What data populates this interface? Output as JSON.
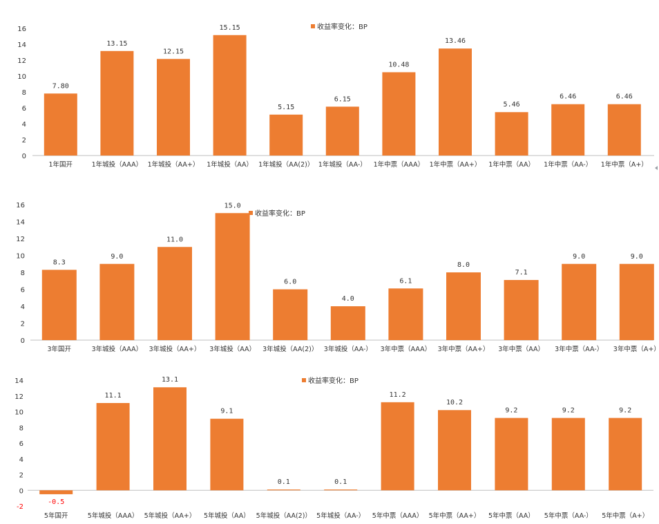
{
  "colors": {
    "bar": "#ED7D31",
    "negative_label": "#FF0000",
    "axis": "#BFBFBF",
    "text": "#333333"
  },
  "chart_data": [
    {
      "type": "bar",
      "legend": "收益率变化：BP",
      "legend_position": "top",
      "grid": false,
      "ylim": [
        0,
        16
      ],
      "yticks": [
        0,
        2,
        4,
        6,
        8,
        10,
        12,
        14,
        16
      ],
      "categories": [
        "1年国开",
        "1年城投（AAA）",
        "1年城投（AA+）",
        "1年城投（AA）",
        "1年城投（AA(2)）",
        "1年城投（AA-）",
        "1年中票（AAA）",
        "1年中票（AA+）",
        "1年中票（AA）",
        "1年中票（AA-）",
        "1年中票（A+）"
      ],
      "values": [
        7.8,
        13.15,
        12.15,
        15.15,
        5.15,
        6.15,
        10.48,
        13.46,
        5.46,
        6.46,
        6.46
      ],
      "value_labels": [
        "7.80",
        "13.15",
        "12.15",
        "15.15",
        "5.15",
        "6.15",
        "10.48",
        "13.46",
        "5.46",
        "6.46",
        "6.46"
      ]
    },
    {
      "type": "bar",
      "legend": "收益率变化：BP",
      "legend_position": "top",
      "grid": false,
      "ylim": [
        0,
        16
      ],
      "yticks": [
        0,
        2,
        4,
        6,
        8,
        10,
        12,
        14,
        16
      ],
      "categories": [
        "3年国开",
        "3年城投（AAA）",
        "3年城投（AA+）",
        "3年城投（AA）",
        "3年城投（AA(2)）",
        "3年城投（AA-）",
        "3年中票（AAA）",
        "3年中票（AA+）",
        "3年中票（AA）",
        "3年中票（AA-）",
        "3年中票（A+）"
      ],
      "values": [
        8.3,
        9.0,
        11.0,
        15.0,
        6.0,
        4.0,
        6.1,
        8.0,
        7.1,
        9.0,
        9.0
      ],
      "value_labels": [
        "8.3",
        "9.0",
        "11.0",
        "15.0",
        "6.0",
        "4.0",
        "6.1",
        "8.0",
        "7.1",
        "9.0",
        "9.0"
      ]
    },
    {
      "type": "bar",
      "legend": "收益率变化：BP",
      "legend_position": "top",
      "grid": false,
      "ylim": [
        -2,
        14
      ],
      "yticks": [
        -2,
        0,
        2,
        4,
        6,
        8,
        10,
        12,
        14
      ],
      "categories": [
        "5年国开",
        "5年城投（AAA）",
        "5年城投（AA+）",
        "5年城投（AA）",
        "5年城投（AA(2)）",
        "5年城投（AA-）",
        "5年中票（AAA）",
        "5年中票（AA+）",
        "5年中票（AA）",
        "5年中票（AA-）",
        "5年中票（A+）"
      ],
      "values": [
        -0.5,
        11.1,
        13.1,
        9.1,
        0.1,
        0.1,
        11.2,
        10.2,
        9.2,
        9.2,
        9.2
      ],
      "value_labels": [
        "-0.5",
        "11.1",
        "13.1",
        "9.1",
        "0.1",
        "0.1",
        "11.2",
        "10.2",
        "9.2",
        "9.2",
        "9.2"
      ]
    }
  ]
}
